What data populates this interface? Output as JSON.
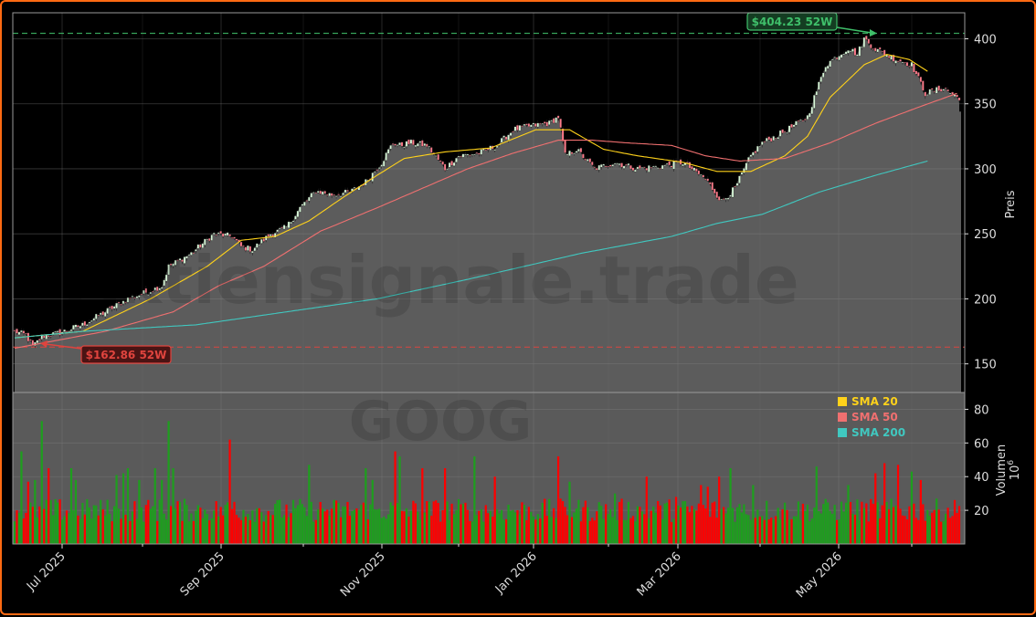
{
  "chart_data": [
    {
      "type": "candlestick",
      "ticker": "GOOG",
      "watermark": "Aktiensignale.trade",
      "ylabel": "Preis",
      "ylim": [
        128,
        420
      ],
      "yticks": [
        150,
        200,
        250,
        300,
        350,
        400
      ],
      "x_ticks": [
        "Jul 2025",
        "Sep 2025",
        "Nov 2025",
        "Jan 2026",
        "Mar 2026",
        "May 2026"
      ],
      "grid": true,
      "high_52w": {
        "value": 404.23,
        "label": "$404.23 52W",
        "color": "#3fbf6a"
      },
      "low_52w": {
        "value": 162.86,
        "label": "$162.86 52W",
        "color": "#e0443e"
      },
      "price_anchors": [
        [
          0,
          175
        ],
        [
          5,
          172
        ],
        [
          8,
          163
        ],
        [
          12,
          171
        ],
        [
          20,
          174
        ],
        [
          30,
          180
        ],
        [
          40,
          190
        ],
        [
          50,
          200
        ],
        [
          58,
          205
        ],
        [
          65,
          210
        ],
        [
          68,
          225
        ],
        [
          78,
          235
        ],
        [
          88,
          250
        ],
        [
          96,
          248
        ],
        [
          100,
          240
        ],
        [
          105,
          238
        ],
        [
          113,
          250
        ],
        [
          120,
          255
        ],
        [
          126,
          270
        ],
        [
          133,
          283
        ],
        [
          140,
          280
        ],
        [
          148,
          282
        ],
        [
          155,
          290
        ],
        [
          162,
          305
        ],
        [
          167,
          320
        ],
        [
          170,
          318
        ],
        [
          175,
          320
        ],
        [
          182,
          318
        ],
        [
          190,
          300
        ],
        [
          196,
          310
        ],
        [
          205,
          312
        ],
        [
          213,
          318
        ],
        [
          220,
          330
        ],
        [
          228,
          333
        ],
        [
          236,
          335
        ],
        [
          240,
          340
        ],
        [
          243,
          310
        ],
        [
          248,
          315
        ],
        [
          256,
          300
        ],
        [
          265,
          305
        ],
        [
          275,
          300
        ],
        [
          285,
          302
        ],
        [
          295,
          305
        ],
        [
          305,
          292
        ],
        [
          312,
          275
        ],
        [
          318,
          285
        ],
        [
          325,
          310
        ],
        [
          330,
          320
        ],
        [
          336,
          325
        ],
        [
          343,
          332
        ],
        [
          350,
          340
        ],
        [
          358,
          380
        ],
        [
          368,
          393
        ],
        [
          372,
          388
        ],
        [
          375,
          400
        ],
        [
          380,
          392
        ],
        [
          388,
          385
        ],
        [
          396,
          380
        ],
        [
          402,
          358
        ],
        [
          410,
          362
        ],
        [
          416,
          355
        ]
      ],
      "sma": [
        {
          "name": "SMA 20",
          "color": "#ffd21a",
          "anchors": [
            [
              0,
              170
            ],
            [
              30,
              175
            ],
            [
              60,
              200
            ],
            [
              85,
              225
            ],
            [
              100,
              245
            ],
            [
              115,
              248
            ],
            [
              130,
              260
            ],
            [
              145,
              278
            ],
            [
              160,
              295
            ],
            [
              172,
              308
            ],
            [
              190,
              313
            ],
            [
              210,
              316
            ],
            [
              230,
              330
            ],
            [
              245,
              330
            ],
            [
              260,
              315
            ],
            [
              275,
              310
            ],
            [
              295,
              305
            ],
            [
              310,
              298
            ],
            [
              325,
              298
            ],
            [
              340,
              310
            ],
            [
              350,
              325
            ],
            [
              360,
              355
            ],
            [
              375,
              380
            ],
            [
              385,
              388
            ],
            [
              395,
              384
            ],
            [
              403,
              375
            ]
          ]
        },
        {
          "name": "SMA 50",
          "color": "#f07070",
          "anchors": [
            [
              0,
              162
            ],
            [
              40,
              175
            ],
            [
              70,
              190
            ],
            [
              90,
              210
            ],
            [
              110,
              225
            ],
            [
              135,
              252
            ],
            [
              160,
              270
            ],
            [
              180,
              285
            ],
            [
              200,
              300
            ],
            [
              220,
              312
            ],
            [
              240,
              322
            ],
            [
              255,
              322
            ],
            [
              270,
              320
            ],
            [
              290,
              318
            ],
            [
              305,
              310
            ],
            [
              320,
              306
            ],
            [
              340,
              308
            ],
            [
              360,
              320
            ],
            [
              380,
              335
            ],
            [
              400,
              348
            ],
            [
              416,
              358
            ]
          ]
        },
        {
          "name": "SMA 200",
          "color": "#40c8c0",
          "anchors": [
            [
              0,
              170
            ],
            [
              30,
              175
            ],
            [
              80,
              180
            ],
            [
              120,
              190
            ],
            [
              160,
              200
            ],
            [
              200,
              215
            ],
            [
              250,
              235
            ],
            [
              290,
              248
            ],
            [
              310,
              258
            ],
            [
              330,
              265
            ],
            [
              355,
              282
            ],
            [
              380,
              295
            ],
            [
              403,
              306
            ]
          ]
        }
      ],
      "volume": {
        "ylabel": "Volumen",
        "exponent": "6",
        "ylim": [
          0,
          90
        ],
        "yticks": [
          20,
          40,
          60,
          80
        ],
        "up_color": "#1e9e1e",
        "down_color": "#ff0000",
        "spikes": [
          [
            3,
            55
          ],
          [
            6,
            37
          ],
          [
            9,
            38
          ],
          [
            12,
            73
          ],
          [
            15,
            45
          ],
          [
            25,
            45
          ],
          [
            27,
            38
          ],
          [
            45,
            41
          ],
          [
            48,
            42
          ],
          [
            50,
            45
          ],
          [
            55,
            38
          ],
          [
            62,
            45
          ],
          [
            65,
            38
          ],
          [
            68,
            73
          ],
          [
            70,
            45
          ],
          [
            95,
            62
          ],
          [
            97,
            25
          ],
          [
            130,
            47
          ],
          [
            155,
            45
          ],
          [
            158,
            38
          ],
          [
            168,
            55
          ],
          [
            170,
            52
          ],
          [
            180,
            45
          ],
          [
            190,
            45
          ],
          [
            203,
            52
          ],
          [
            212,
            40
          ],
          [
            240,
            52
          ],
          [
            245,
            37
          ],
          [
            265,
            30
          ],
          [
            279,
            40
          ],
          [
            292,
            28
          ],
          [
            303,
            35
          ],
          [
            306,
            34
          ],
          [
            311,
            40
          ],
          [
            316,
            45
          ],
          [
            326,
            35
          ],
          [
            354,
            46
          ],
          [
            368,
            35
          ],
          [
            380,
            42
          ],
          [
            384,
            48
          ],
          [
            390,
            47
          ],
          [
            396,
            43
          ],
          [
            400,
            38
          ]
        ]
      },
      "legend": [
        {
          "label": "SMA 20",
          "color": "#ffd21a"
        },
        {
          "label": "SMA 50",
          "color": "#f07070"
        },
        {
          "label": "SMA 200",
          "color": "#40c8c0"
        }
      ]
    }
  ]
}
